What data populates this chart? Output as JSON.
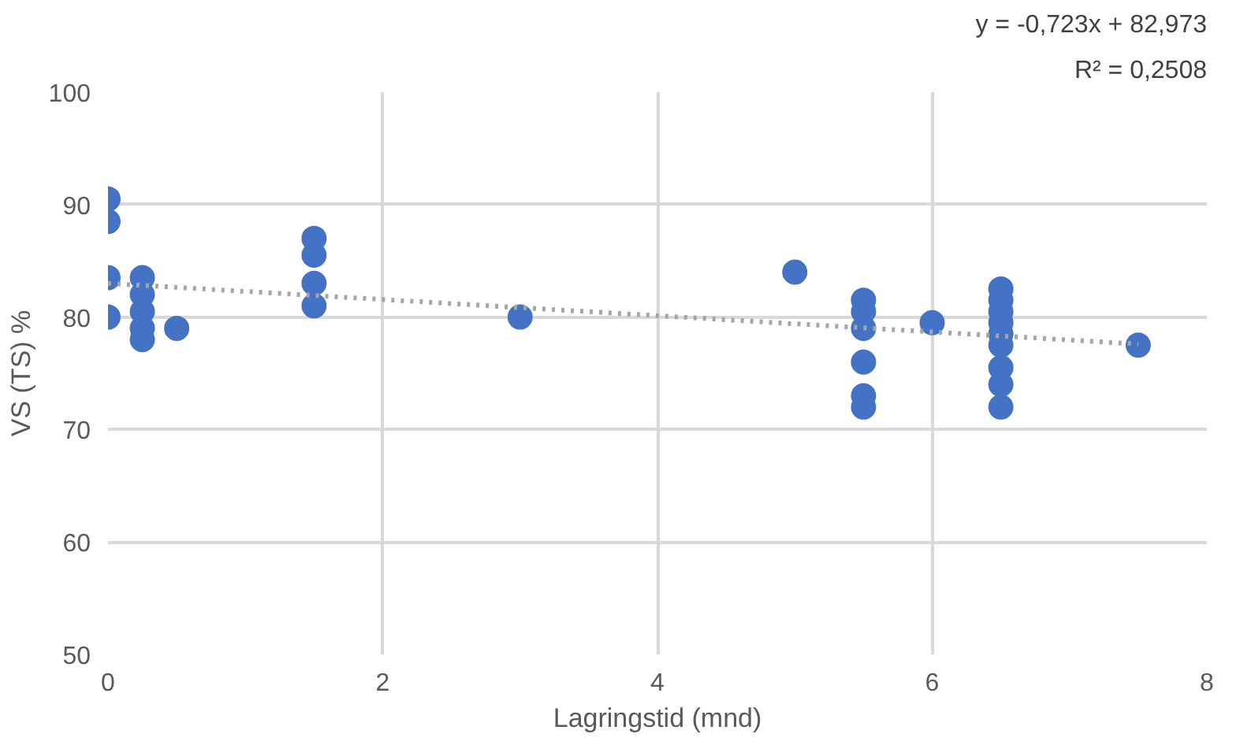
{
  "chart_data": {
    "type": "scatter",
    "xlabel": "Lagringstid (mnd)",
    "ylabel": "VS (TS) %",
    "annotations": [
      "y = -0,723x + 82,973",
      "R² = 0,2508"
    ],
    "series": [
      {
        "color": "#4472c4",
        "marker": "circle",
        "x": [
          0,
          0,
          0,
          0,
          0.25,
          0.25,
          0.25,
          0.25,
          0.25,
          0.5,
          1.5,
          1.5,
          1.5,
          1.5,
          3,
          5,
          5.5,
          5.5,
          5.5,
          5.5,
          5.5,
          5.5,
          6,
          6.5,
          6.5,
          6.5,
          6.5,
          6.5,
          6.5,
          6.5,
          6.5,
          6.5,
          7.5
        ],
        "values": [
          90.5,
          88.5,
          83.5,
          80,
          83.5,
          82,
          80.5,
          79,
          78,
          79,
          87,
          85.5,
          83,
          81,
          80,
          84,
          81.5,
          80.5,
          79,
          76,
          73,
          72,
          79.5,
          82.5,
          81.5,
          80.5,
          79.5,
          78.5,
          77.5,
          75.5,
          74,
          72,
          77.5
        ]
      },
      {
        "type": "line",
        "color": "#a5a5a5",
        "marker": "none",
        "line_style": "dotted",
        "x": [
          0,
          7.5
        ],
        "values": [
          83.0,
          77.6
        ]
      }
    ],
    "xlim": [
      0,
      8
    ],
    "ylim": [
      50,
      100
    ],
    "xticks": [
      0,
      2,
      4,
      6,
      8
    ],
    "yticks": [
      50,
      60,
      70,
      80,
      90,
      100
    ],
    "grid": true
  }
}
